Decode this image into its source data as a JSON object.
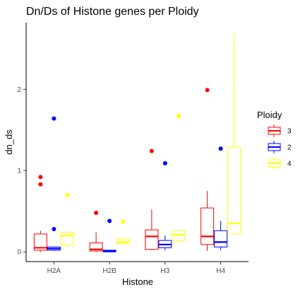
{
  "chart_data": {
    "type": "boxplot",
    "title": "Dn/Ds of Histone genes per Ploidy",
    "xlabel": "Histone",
    "ylabel": "dn_ds",
    "ylim": [
      -0.12,
      2.82
    ],
    "yticks": [
      0,
      1,
      2
    ],
    "categories": [
      "H2A",
      "H2B",
      "H3",
      "H4"
    ],
    "grid": false,
    "legend": {
      "title": "Ploidy",
      "position": "right"
    },
    "series": [
      {
        "name": "3",
        "color": "#ff0000",
        "boxes": [
          {
            "category": "H2A",
            "min": 0.0,
            "q1": 0.02,
            "median": 0.05,
            "q3": 0.22,
            "max": 0.26,
            "outliers": [
              0.92,
              0.83
            ]
          },
          {
            "category": "H2B",
            "min": 0.0,
            "q1": 0.01,
            "median": 0.03,
            "q3": 0.11,
            "max": 0.24,
            "outliers": [
              0.48
            ]
          },
          {
            "category": "H3",
            "min": 0.02,
            "q1": 0.03,
            "median": 0.19,
            "q3": 0.27,
            "max": 0.52,
            "outliers": [
              1.24
            ]
          },
          {
            "category": "H4",
            "min": 0.01,
            "q1": 0.09,
            "median": 0.19,
            "q3": 0.54,
            "max": 0.75,
            "outliers": [
              1.99
            ]
          }
        ]
      },
      {
        "name": "2",
        "color": "#0000ff",
        "boxes": [
          {
            "category": "H2A",
            "min": 0.01,
            "q1": 0.02,
            "median": 0.04,
            "q3": 0.06,
            "max": 0.06,
            "outliers": [
              1.64,
              0.28
            ]
          },
          {
            "category": "H2B",
            "min": 0.0,
            "q1": 0.0,
            "median": 0.01,
            "q3": 0.02,
            "max": 0.02,
            "outliers": [
              0.38
            ]
          },
          {
            "category": "H3",
            "min": 0.02,
            "q1": 0.05,
            "median": 0.09,
            "q3": 0.14,
            "max": 0.2,
            "outliers": [
              1.09
            ]
          },
          {
            "category": "H4",
            "min": 0.02,
            "q1": 0.06,
            "median": 0.12,
            "q3": 0.26,
            "max": 0.38,
            "outliers": [
              1.27
            ]
          }
        ]
      },
      {
        "name": "4",
        "color": "#ffff00",
        "boxes": [
          {
            "category": "H2A",
            "min": 0.04,
            "q1": 0.08,
            "median": 0.2,
            "q3": 0.24,
            "max": 0.25,
            "outliers": [
              0.7
            ]
          },
          {
            "category": "H2B",
            "min": 0.1,
            "q1": 0.1,
            "median": 0.12,
            "q3": 0.16,
            "max": 0.16,
            "outliers": [
              0.37
            ]
          },
          {
            "category": "H3",
            "min": 0.1,
            "q1": 0.14,
            "median": 0.21,
            "q3": 0.26,
            "max": 0.27,
            "outliers": [
              1.67
            ]
          },
          {
            "category": "H4",
            "min": 0.22,
            "q1": 0.22,
            "median": 0.35,
            "q3": 1.29,
            "max": 2.69,
            "outliers": []
          }
        ]
      }
    ]
  }
}
